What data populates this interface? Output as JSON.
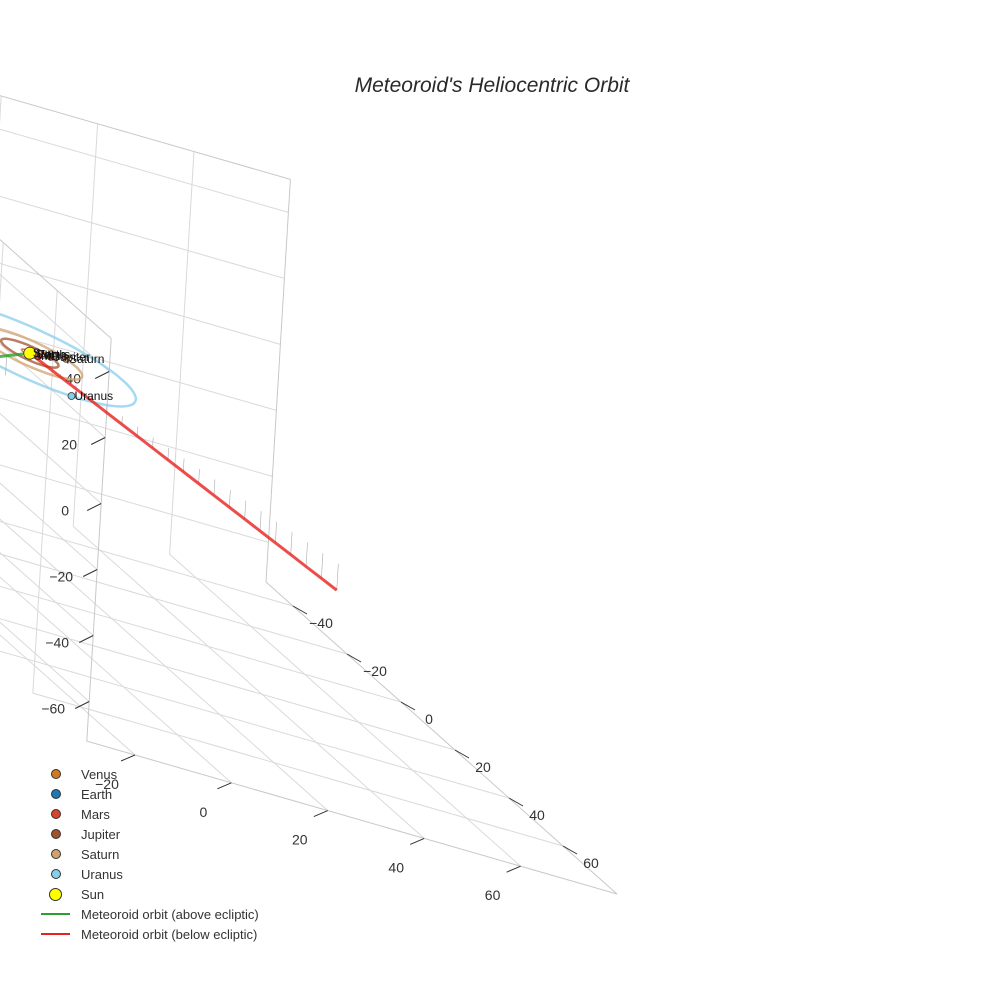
{
  "chart_data": {
    "type": "scatter3d",
    "title": "Meteoroid's Heliocentric Orbit",
    "axes": {
      "x": {
        "ticks": [
          -20,
          0,
          20,
          40,
          60
        ]
      },
      "y": {
        "ticks": [
          -40,
          -20,
          0,
          20,
          40,
          60
        ]
      },
      "z": {
        "ticks": [
          -60,
          -40,
          -20,
          0,
          20,
          40
        ]
      }
    },
    "grid": true,
    "legend_position": "bottom-left",
    "bodies": [
      {
        "name": "Venus",
        "color": "#d2781e"
      },
      {
        "name": "Earth",
        "color": "#1f77b4"
      },
      {
        "name": "Mars",
        "color": "#d6452a"
      },
      {
        "name": "Jupiter",
        "color": "#a0522d"
      },
      {
        "name": "Saturn",
        "color": "#d2a06e"
      },
      {
        "name": "Uranus",
        "color": "#87ceeb"
      },
      {
        "name": "Sun",
        "color": "#ffff00"
      }
    ],
    "orbits": [
      {
        "name": "Meteoroid orbit (above ecliptic)",
        "color": "#2ca02c"
      },
      {
        "name": "Meteoroid orbit (below ecliptic)",
        "color": "#e8211d"
      }
    ]
  }
}
